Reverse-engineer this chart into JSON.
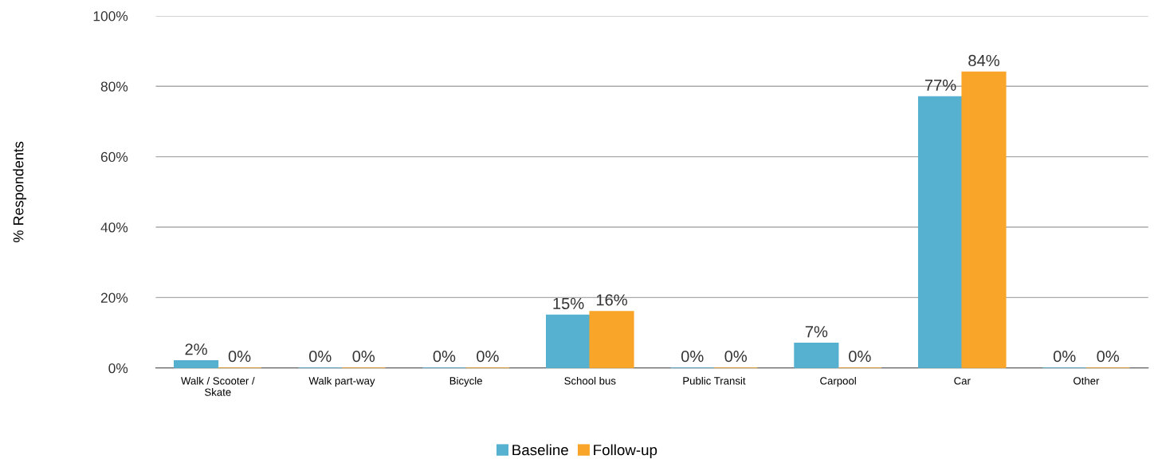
{
  "chart_data": {
    "type": "bar",
    "ylabel": "% Respondents",
    "categories": [
      "Walk / Scooter /\nSkate",
      "Walk part-way",
      "Bicycle",
      "School bus",
      "Public Transit",
      "Carpool",
      "Car",
      "Other"
    ],
    "series": [
      {
        "name": "Baseline",
        "color": "#56b0cf",
        "values": [
          2,
          0,
          0,
          15,
          0,
          7,
          77,
          0
        ],
        "value_labels": [
          "2%",
          "0%",
          "0%",
          "15%",
          "0%",
          "7%",
          "77%",
          "0%"
        ]
      },
      {
        "name": "Follow-up",
        "color": "#f9a52a",
        "values": [
          0,
          0,
          0,
          16,
          0,
          0,
          84,
          0
        ],
        "value_labels": [
          "0%",
          "0%",
          "0%",
          "16%",
          "0%",
          "0%",
          "84%",
          "0%"
        ]
      }
    ],
    "ylim": [
      0,
      100
    ],
    "yticks": [
      {
        "value": 0,
        "label": "0%"
      },
      {
        "value": 20,
        "label": "20%"
      },
      {
        "value": 40,
        "label": "40%"
      },
      {
        "value": 60,
        "label": "60%"
      },
      {
        "value": 80,
        "label": "80%"
      },
      {
        "value": 100,
        "label": "100%"
      }
    ],
    "grid": "y",
    "legend": "bottom"
  }
}
